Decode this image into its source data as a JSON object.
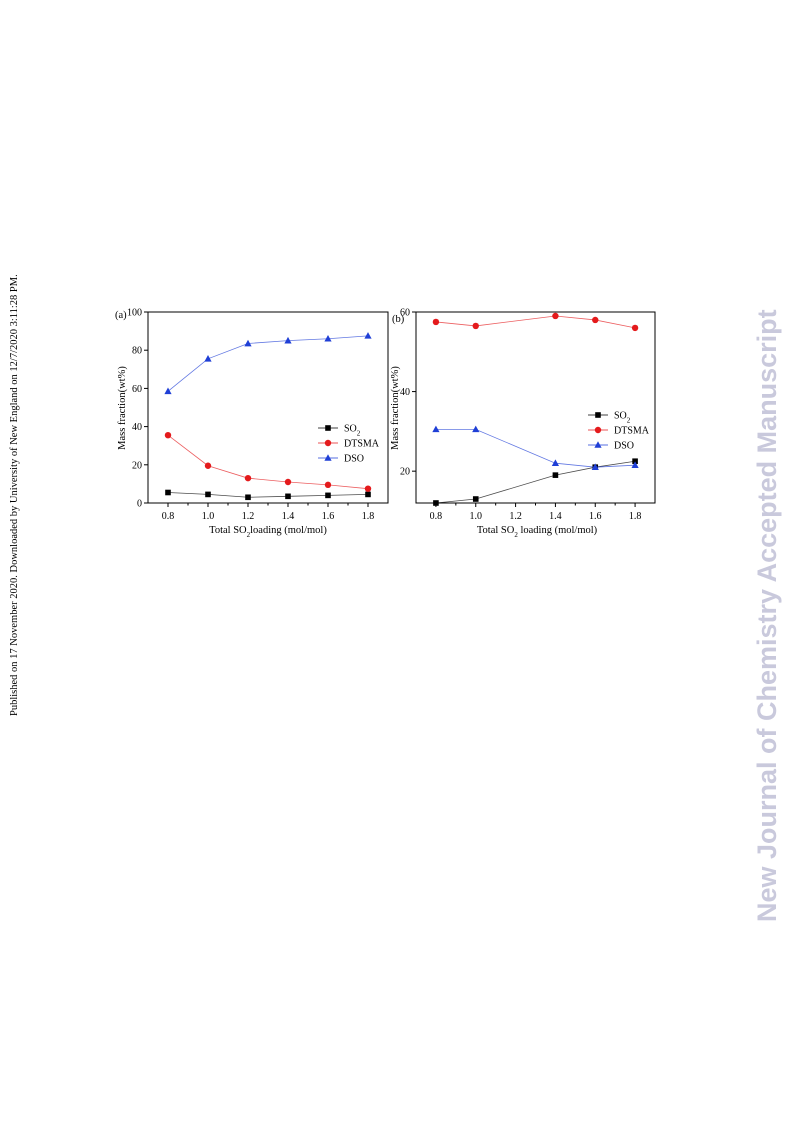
{
  "page": {
    "side_note": "Published on 17 November 2020. Downloaded by University of New England on 12/7/2020 3:11:28 PM.",
    "watermark": "New Journal of Chemistry Accepted Manuscript"
  },
  "colors": {
    "SO2": "#000000",
    "DTSMA": "#e41a1c",
    "DSO": "#1f3fd6"
  },
  "chart_data": [
    {
      "type": "line",
      "panel_label": "(a)",
      "xlabel_parts": [
        "Total SO",
        "2",
        "loading (mol/mol)"
      ],
      "ylabel": "Mass fraction(wt%)",
      "xlim": [
        0.7,
        1.9
      ],
      "ylim": [
        0,
        100
      ],
      "xticks": [
        "0.8",
        "1.0",
        "1.2",
        "1.4",
        "1.6",
        "1.8"
      ],
      "yticks": [
        "0",
        "20",
        "40",
        "60",
        "80",
        "100"
      ],
      "legend_position": "center-right",
      "grid": false,
      "series": [
        {
          "name_parts": [
            "SO",
            "2"
          ],
          "marker": "square",
          "x": [
            0.8,
            1.0,
            1.2,
            1.4,
            1.6,
            1.8
          ],
          "y": [
            5.5,
            4.5,
            3.0,
            3.5,
            4.0,
            4.5
          ]
        },
        {
          "name_parts": [
            "DTSMA"
          ],
          "marker": "circle",
          "x": [
            0.8,
            1.0,
            1.2,
            1.4,
            1.6,
            1.8
          ],
          "y": [
            35.5,
            19.5,
            13.0,
            11.0,
            9.5,
            7.5
          ]
        },
        {
          "name_parts": [
            "DSO"
          ],
          "marker": "triangle",
          "x": [
            0.8,
            1.0,
            1.2,
            1.4,
            1.6,
            1.8
          ],
          "y": [
            58.5,
            75.5,
            83.5,
            85.0,
            86.0,
            87.5
          ]
        }
      ]
    },
    {
      "type": "line",
      "panel_label": "(b)",
      "xlabel_parts": [
        "Total SO",
        "2",
        " loading (mol/mol)"
      ],
      "ylabel": "Mass fraction(wt%)",
      "xlim": [
        0.7,
        1.9
      ],
      "ylim": [
        12,
        60
      ],
      "xticks": [
        "0.8",
        "1.0",
        "1.2",
        "1.4",
        "1.6",
        "1.8"
      ],
      "yticks": [
        "20",
        "40",
        "60"
      ],
      "legend_position": "center-right",
      "grid": false,
      "series": [
        {
          "name_parts": [
            "SO",
            "2"
          ],
          "marker": "square",
          "x": [
            0.8,
            1.0,
            1.4,
            1.6,
            1.8
          ],
          "y": [
            12.0,
            13.0,
            19.0,
            21.0,
            22.5
          ]
        },
        {
          "name_parts": [
            "DTSMA"
          ],
          "marker": "circle",
          "x": [
            0.8,
            1.0,
            1.4,
            1.6,
            1.8
          ],
          "y": [
            57.5,
            56.5,
            59.0,
            58.0,
            56.0
          ]
        },
        {
          "name_parts": [
            "DSO"
          ],
          "marker": "triangle",
          "x": [
            0.8,
            1.0,
            1.4,
            1.6,
            1.8
          ],
          "y": [
            30.5,
            30.5,
            22.0,
            21.0,
            21.5
          ]
        }
      ]
    }
  ]
}
